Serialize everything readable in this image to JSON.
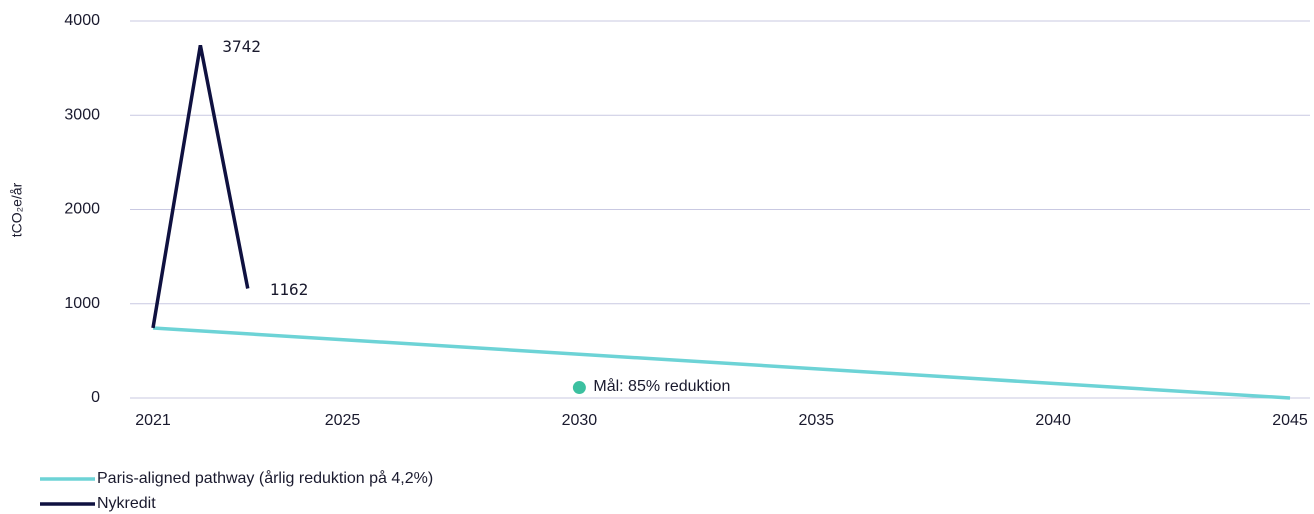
{
  "chart_data": {
    "type": "line",
    "ylabel": "tCO₂e/år",
    "xlim": [
      2021,
      2045
    ],
    "xticks": [
      2021,
      2025,
      2030,
      2035,
      2040,
      2045
    ],
    "ylim": [
      0,
      4000
    ],
    "yticks": [
      0,
      1000,
      2000,
      3000,
      4000
    ],
    "grid": true,
    "legend": "bottom-left",
    "series": [
      {
        "name": "Paris-aligned pathway (årlig reduktion på 4,2%)",
        "color": "#6dd3d6",
        "x": [
          2021,
          2045
        ],
        "values": [
          743,
          0
        ]
      },
      {
        "name": "Nykredit",
        "color": "#0f1140",
        "x": [
          2021,
          2022,
          2023
        ],
        "values": [
          743,
          3742,
          1162
        ],
        "labeled": [
          false,
          true,
          true
        ]
      }
    ],
    "annotations": [
      {
        "label": "Mål: 85% reduktion",
        "x": 2030,
        "y": 111,
        "color": "#3cc0a0"
      }
    ]
  }
}
